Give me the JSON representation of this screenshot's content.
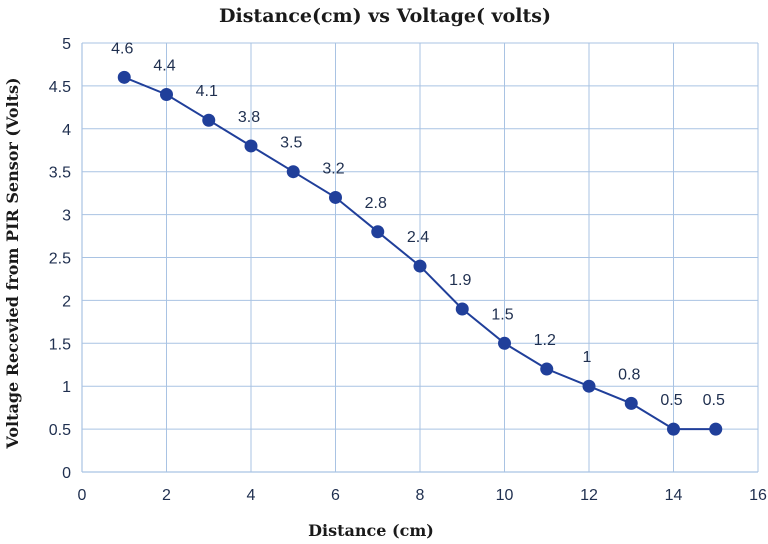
{
  "chart_data": {
    "type": "line",
    "title": "Distance(cm) vs Voltage( volts)",
    "xlabel": "Distance (cm)",
    "ylabel": "Voltage Recevied from PIR Sensor (Volts)",
    "xlim": [
      0,
      16
    ],
    "ylim": [
      0,
      5
    ],
    "xticks": [
      0,
      2,
      4,
      6,
      8,
      10,
      12,
      14,
      16
    ],
    "yticks": [
      0,
      0.5,
      1,
      1.5,
      2,
      2.5,
      3,
      3.5,
      4,
      4.5,
      5
    ],
    "grid": true,
    "series": [
      {
        "name": "Voltage",
        "color": "#203f9a",
        "x": [
          1,
          2,
          3,
          4,
          5,
          6,
          7,
          8,
          9,
          10,
          11,
          12,
          13,
          14,
          15
        ],
        "values": [
          4.6,
          4.4,
          4.1,
          3.8,
          3.5,
          3.2,
          2.8,
          2.4,
          1.9,
          1.5,
          1.2,
          1,
          0.8,
          0.5,
          0.5
        ],
        "labels": [
          "4.6",
          "4.4",
          "4.1",
          "3.8",
          "3.5",
          "3.2",
          "2.8",
          "2.4",
          "1.9",
          "1.5",
          "1.2",
          "1",
          "0.8",
          "0.5",
          "0.5"
        ]
      }
    ]
  }
}
